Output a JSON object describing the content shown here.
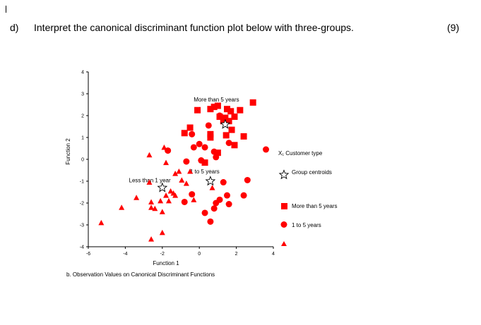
{
  "question": {
    "label": "d)",
    "text": "Interpret the canonical discriminant function plot below with three-groups.",
    "marks": "(9)"
  },
  "chart_data": {
    "type": "scatter",
    "xlabel": "Function 1",
    "ylabel": "Function 2",
    "caption": "b. Observation Values on Canonical Discriminant Functions",
    "xlim": [
      -6,
      4
    ],
    "ylim": [
      -4,
      4
    ],
    "x_ticks": [
      "-6",
      "-4",
      "-2",
      "0",
      "2",
      "4"
    ],
    "y_ticks": [
      "4",
      "3",
      "2",
      "1",
      "0",
      "-1",
      "-2",
      "-3",
      "-4"
    ],
    "legend_title": "X₁ Customer type",
    "legend_centroid_label": "Group centroids",
    "annotations": [
      {
        "text": "More than 5 years",
        "x": 0.0,
        "y": 2.75
      },
      {
        "text": "1 to 5 years",
        "x": -0.2,
        "y": -0.55
      },
      {
        "text": "Less than 1 year",
        "x": -3.5,
        "y": -0.95
      }
    ],
    "series": [
      {
        "name": "More than 5 years",
        "marker": "square",
        "color": "#ff0000",
        "points": [
          [
            2.9,
            2.6
          ],
          [
            -0.1,
            2.25
          ],
          [
            0.6,
            2.3
          ],
          [
            0.8,
            2.4
          ],
          [
            1.0,
            2.45
          ],
          [
            1.5,
            2.3
          ],
          [
            1.7,
            2.2
          ],
          [
            2.2,
            2.25
          ],
          [
            1.1,
            1.95
          ],
          [
            1.4,
            1.9
          ],
          [
            1.6,
            1.75
          ],
          [
            1.9,
            1.95
          ],
          [
            1.3,
            1.75
          ],
          [
            1.75,
            1.35
          ],
          [
            -0.5,
            1.45
          ],
          [
            -0.8,
            1.2
          ],
          [
            0.6,
            1.15
          ],
          [
            0.6,
            1.0
          ],
          [
            1.45,
            1.1
          ],
          [
            2.4,
            1.05
          ],
          [
            1.9,
            0.65
          ],
          [
            0.3,
            -0.15
          ],
          [
            1.0,
            0.3
          ]
        ]
      },
      {
        "name": "1 to 5 years",
        "marker": "circle",
        "color": "#ff0000",
        "points": [
          [
            0.5,
            1.55
          ],
          [
            -0.4,
            1.15
          ],
          [
            1.1,
            2.0
          ],
          [
            -1.7,
            0.4
          ],
          [
            -0.3,
            0.55
          ],
          [
            0.0,
            0.7
          ],
          [
            0.3,
            0.55
          ],
          [
            0.8,
            0.35
          ],
          [
            1.6,
            0.75
          ],
          [
            3.6,
            0.45
          ],
          [
            0.9,
            0.1
          ],
          [
            -0.7,
            -0.1
          ],
          [
            0.1,
            -0.05
          ],
          [
            2.6,
            -0.95
          ],
          [
            1.3,
            -1.05
          ],
          [
            -0.4,
            -1.6
          ],
          [
            -0.8,
            -1.95
          ],
          [
            1.5,
            -1.65
          ],
          [
            2.4,
            -1.65
          ],
          [
            0.9,
            -2.0
          ],
          [
            1.1,
            -1.85
          ],
          [
            0.8,
            -2.25
          ],
          [
            1.6,
            -2.05
          ],
          [
            0.3,
            -2.45
          ],
          [
            0.6,
            -2.85
          ]
        ]
      },
      {
        "name": "Less than 1 year",
        "marker": "triangle",
        "color": "#ff0000",
        "points": [
          [
            -5.3,
            -2.9
          ],
          [
            -4.2,
            -2.2
          ],
          [
            -3.4,
            -1.75
          ],
          [
            -2.7,
            0.2
          ],
          [
            -2.7,
            -1.05
          ],
          [
            -2.6,
            -1.95
          ],
          [
            -2.6,
            -2.2
          ],
          [
            -2.4,
            -2.25
          ],
          [
            -2.1,
            -1.9
          ],
          [
            -2.0,
            -2.4
          ],
          [
            -2.0,
            -3.35
          ],
          [
            -2.6,
            -3.65
          ],
          [
            -1.8,
            -1.65
          ],
          [
            -1.65,
            -1.9
          ],
          [
            -1.55,
            -1.45
          ],
          [
            -1.4,
            -1.55
          ],
          [
            -1.3,
            -1.65
          ],
          [
            -1.3,
            -0.65
          ],
          [
            -1.1,
            -0.55
          ],
          [
            -0.7,
            -1.1
          ],
          [
            -0.5,
            -0.55
          ],
          [
            -0.3,
            -1.85
          ],
          [
            -1.9,
            0.55
          ],
          [
            -1.8,
            -0.15
          ],
          [
            0.7,
            -1.3
          ],
          [
            -0.95,
            -0.95
          ]
        ]
      }
    ],
    "centroids": [
      {
        "group": "More than 5 years",
        "x": 1.4,
        "y": 1.6
      },
      {
        "group": "1 to 5 years",
        "x": 0.6,
        "y": -1.0
      },
      {
        "group": "Less than 1 year",
        "x": -2.0,
        "y": -1.3
      }
    ]
  }
}
